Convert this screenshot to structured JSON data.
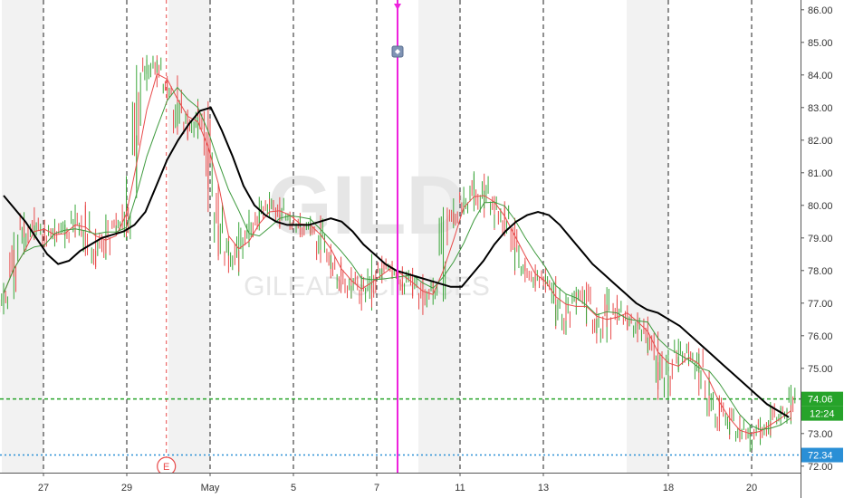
{
  "chart_data": {
    "type": "candlestick",
    "ylim": [
      71.8,
      86.3
    ],
    "y_ticks": [
      72.0,
      73.0,
      74.0,
      75.0,
      76.0,
      77.0,
      78.0,
      79.0,
      80.0,
      81.0,
      82.0,
      83.0,
      84.0,
      85.0,
      86.0
    ],
    "y_tick_labels": [
      "72.00",
      "73.00",
      "74.00",
      "75.00",
      "76.00",
      "77.00",
      "78.00",
      "79.00",
      "80.00",
      "81.00",
      "82.00",
      "83.00",
      "84.00",
      "85.00",
      "86.00"
    ],
    "x_ticks": [
      {
        "day": 1,
        "label": "27"
      },
      {
        "day": 3,
        "label": "29"
      },
      {
        "day": 5,
        "label": "May"
      },
      {
        "day": 7,
        "label": "5"
      },
      {
        "day": 9,
        "label": "7"
      },
      {
        "day": 11,
        "label": "11"
      },
      {
        "day": 13,
        "label": "13"
      },
      {
        "day": 16,
        "label": "18"
      },
      {
        "day": 18,
        "label": "20"
      }
    ],
    "shaded_days": [
      0,
      4,
      10,
      15
    ],
    "session_lines": [
      1,
      3,
      5,
      7,
      9,
      11,
      13,
      16,
      18
    ],
    "price_line": {
      "value": 74.06,
      "label": "74.06",
      "countdown": "12:24",
      "color": "#26a32a"
    },
    "low_line": {
      "value": 72.34,
      "label": "72.34",
      "color": "#2a8fd6"
    },
    "earnings_marker": {
      "day": 3.95,
      "label": "E"
    },
    "event_line": {
      "day": 9.5,
      "color": "#ee22dd"
    },
    "watermark": {
      "symbol": "GILD",
      "company": "GILEAD SCIENCES"
    },
    "closes": [
      77.3,
      78.8,
      79.6,
      79.2,
      79.0,
      79.1,
      79.3,
      79.8,
      78.9,
      78.5,
      79.4,
      79.3,
      80.5,
      84.0,
      84.3,
      83.8,
      83.5,
      82.5,
      82.2,
      83.0,
      80.2,
      78.8,
      78.2,
      79.0,
      79.5,
      79.8,
      80.1,
      79.6,
      79.4,
      79.3,
      79.5,
      78.5,
      78.0,
      77.7,
      77.4,
      77.2,
      78.3,
      78.1,
      77.9,
      77.6,
      77.4,
      77.1,
      77.3,
      79.6,
      79.9,
      80.3,
      80.6,
      80.0,
      79.7,
      79.3,
      78.2,
      77.9,
      77.6,
      77.5,
      76.5,
      76.9,
      77.3,
      76.5,
      76.0,
      77.0,
      76.7,
      76.4,
      76.2,
      75.8,
      74.5,
      75.2,
      75.5,
      75.3,
      74.6,
      74.0,
      73.3,
      73.1,
      72.9,
      73.0,
      73.3,
      73.5,
      73.6,
      74.0
    ],
    "series": [
      {
        "color": "#000000",
        "values": [
          80.3,
          79.9,
          79.5,
          79.0,
          78.5,
          78.2,
          78.3,
          78.6,
          78.8,
          79.0,
          79.1,
          79.2,
          79.4,
          79.8,
          80.6,
          81.4,
          82.0,
          82.5,
          82.9,
          83.0,
          82.3,
          81.5,
          80.6,
          80.0,
          79.7,
          79.5,
          79.4,
          79.4,
          79.4,
          79.5,
          79.6,
          79.5,
          79.2,
          78.8,
          78.5,
          78.2,
          78.0,
          77.9,
          77.8,
          77.7,
          77.6,
          77.5,
          77.5,
          77.9,
          78.3,
          78.8,
          79.2,
          79.5,
          79.7,
          79.8,
          79.7,
          79.4,
          79.0,
          78.6,
          78.2,
          77.9,
          77.6,
          77.3,
          77.0,
          76.8,
          76.7,
          76.5,
          76.3,
          76.0,
          75.7,
          75.4,
          75.1,
          74.8,
          74.5,
          74.2,
          73.9,
          73.7,
          73.5
        ],
        "x_offset": 0
      },
      {
        "color": "#e84a4a",
        "values": null
      },
      {
        "color": "#3e9a3e",
        "values": null
      }
    ]
  }
}
